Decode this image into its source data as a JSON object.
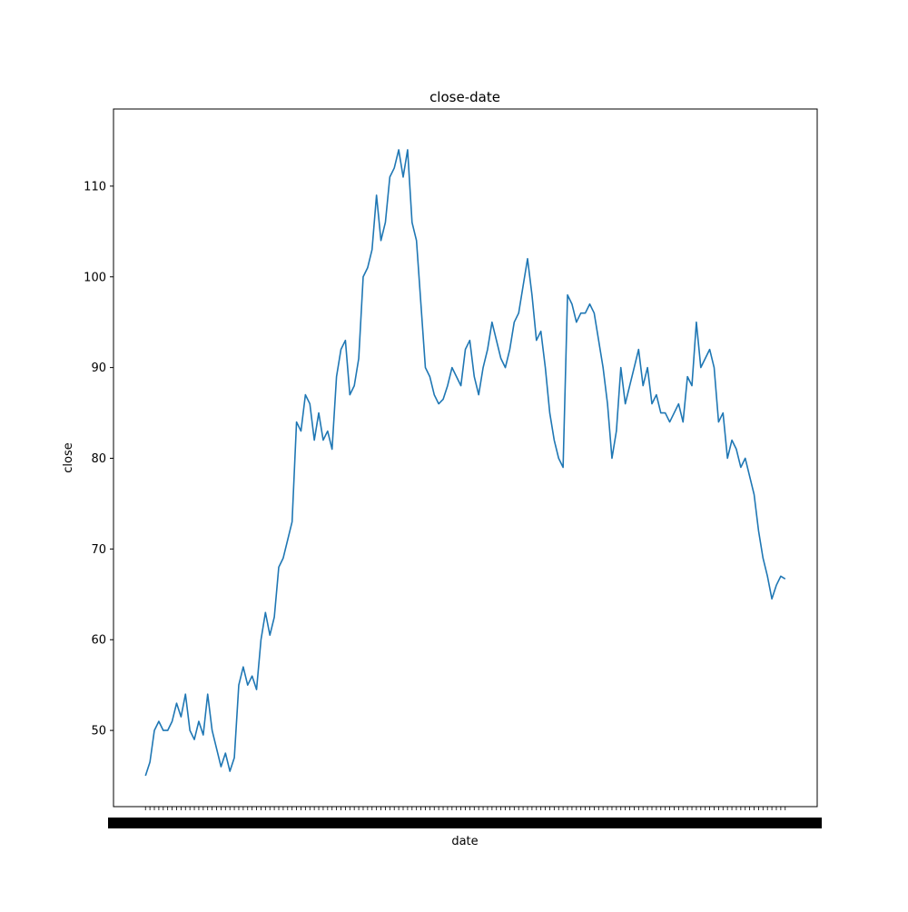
{
  "chart_data": {
    "type": "line",
    "title": "close-date",
    "x_label": "date",
    "y_label": "close",
    "color": "#1f77b4",
    "ylim": [
      41.6,
      118.5
    ],
    "yticks": [
      50,
      60,
      70,
      80,
      90,
      100,
      110
    ],
    "values": [
      45,
      46.5,
      50,
      51,
      50,
      50,
      51,
      53,
      51.5,
      54,
      50,
      49,
      51,
      49.5,
      54,
      50,
      48,
      46,
      47.5,
      45.5,
      47,
      55,
      57,
      55,
      56,
      54.5,
      60,
      63,
      60.5,
      62.5,
      68,
      69,
      71,
      73,
      84,
      83,
      87,
      86,
      82,
      85,
      82,
      83,
      81,
      89,
      92,
      93,
      87,
      88,
      91,
      100,
      101,
      103,
      109,
      104,
      106,
      111,
      112,
      114,
      111,
      114,
      106,
      104,
      97,
      90,
      89,
      87,
      86,
      86.5,
      88,
      90,
      89,
      88,
      92,
      93,
      89,
      87,
      90,
      92,
      95,
      93,
      91,
      90,
      92,
      95,
      96,
      99,
      102,
      98,
      93,
      94,
      90,
      85,
      82,
      80,
      79,
      98,
      97,
      95,
      96,
      96,
      97,
      96,
      93,
      90,
      86,
      80,
      83,
      90,
      86,
      88,
      90,
      92,
      88,
      90,
      86,
      87,
      85,
      85,
      84,
      85,
      86,
      84,
      89,
      88,
      95,
      90,
      91,
      92,
      90,
      84,
      85,
      80,
      82,
      81,
      79,
      80,
      78,
      76,
      72,
      69,
      67,
      64.5,
      66,
      67,
      66.7
    ]
  }
}
